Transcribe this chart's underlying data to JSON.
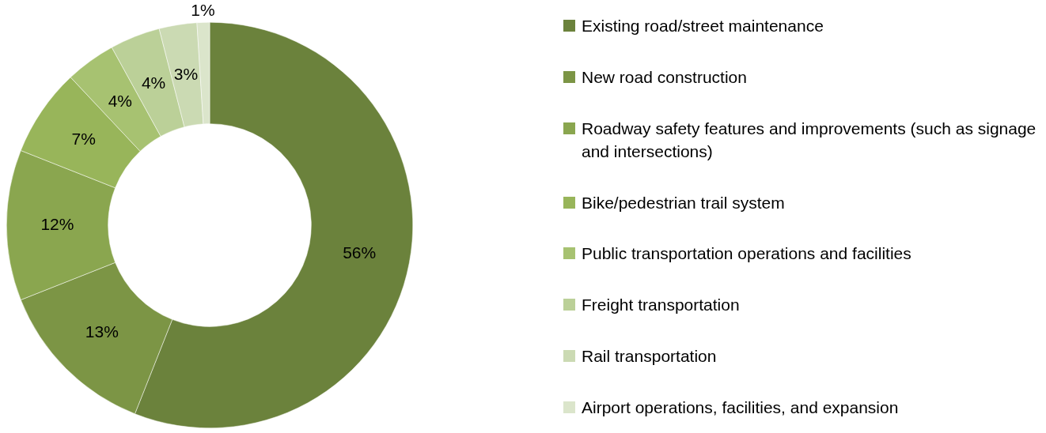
{
  "chart_data": {
    "type": "donut",
    "categories": [
      "Existing road/street maintenance",
      "New road construction",
      "Roadway safety features and improvements (such as signage and intersections)",
      "Bike/pedestrian trail system",
      "Public transportation operations and facilities",
      "Freight transportation",
      "Rail transportation",
      "Airport operations, facilities, and expansion"
    ],
    "values": [
      56,
      13,
      12,
      7,
      4,
      4,
      3,
      1
    ],
    "value_labels": [
      "56%",
      "13%",
      "12%",
      "7%",
      "4%",
      "4%",
      "3%",
      "1%"
    ],
    "colors": [
      "#6b823c",
      "#7c9545",
      "#8aa64f",
      "#98b55a",
      "#a7c271",
      "#bbd098",
      "#cbdab3",
      "#dbe5cb"
    ],
    "legend": "right"
  }
}
